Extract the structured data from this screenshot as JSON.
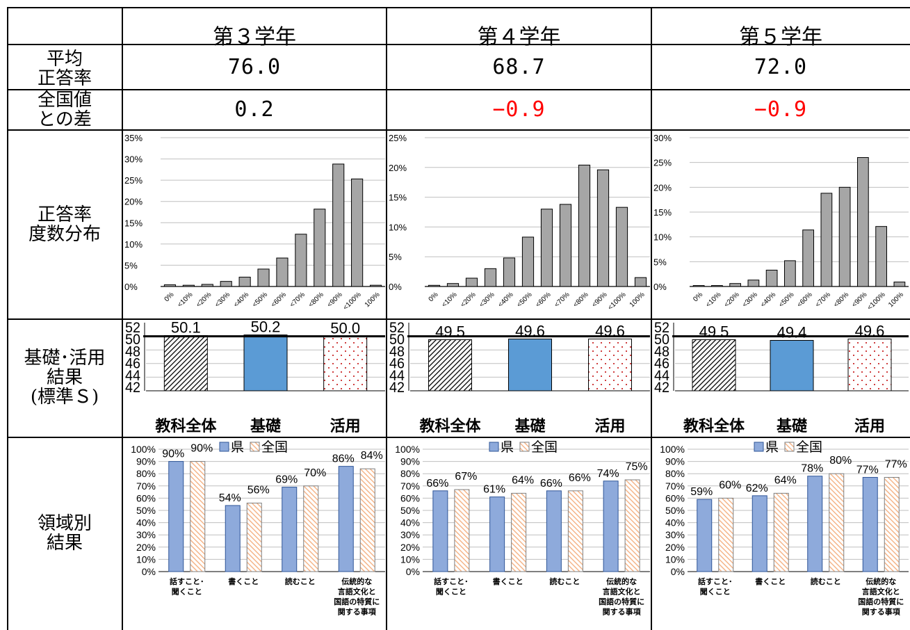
{
  "header": {
    "columns": [
      "第３学年",
      "第４学年",
      "第５学年"
    ]
  },
  "rows": {
    "avg_label": "平均\n正答率",
    "diff_label": "全国値\nとの差",
    "dist_label": "正答率\n度数分布",
    "std_label": "基礎･活用\n結果\n(標準Ｓ)",
    "area_label": "領域別\n結果"
  },
  "grades": [
    {
      "avg": "76.0",
      "diff": "0.2",
      "diff_negative": false
    },
    {
      "avg": "68.7",
      "diff": "−0.9",
      "diff_negative": true
    },
    {
      "avg": "72.0",
      "diff": "−0.9",
      "diff_negative": true
    }
  ],
  "colors": {
    "gray_bar": "#a6a6a6",
    "blue_bar": "#5b9bd5",
    "prefecture": "#8eaadb",
    "national": "#f4b183",
    "negative": "#ff0000"
  },
  "chart_data": [
    {
      "type": "bar",
      "grade": "第３学年",
      "chart": "distribution",
      "categories": [
        "0%",
        "<10%",
        "<20%",
        "<30%",
        "<40%",
        "<50%",
        "<60%",
        "<70%",
        "<80%",
        "<90%",
        "<100%",
        "100%"
      ],
      "values": [
        0.4,
        0.3,
        0.5,
        1.2,
        2.2,
        4.1,
        6.7,
        12.3,
        18.2,
        28.8,
        25.3,
        0.3
      ],
      "ylim": [
        0,
        35
      ],
      "yticks": [
        0,
        5,
        10,
        15,
        20,
        25,
        30,
        35
      ],
      "ytick_labels": [
        "0%",
        "5%",
        "10%",
        "15%",
        "20%",
        "25%",
        "30%",
        "35%"
      ]
    },
    {
      "type": "bar",
      "grade": "第４学年",
      "chart": "distribution",
      "categories": [
        "0%",
        "<10%",
        "<20%",
        "<30%",
        "<40%",
        "<50%",
        "<60%",
        "<70%",
        "<80%",
        "<90%",
        "<100%",
        "100%"
      ],
      "values": [
        0.2,
        0.5,
        1.4,
        3.0,
        4.8,
        8.3,
        13.0,
        13.8,
        20.4,
        19.6,
        13.3,
        1.5
      ],
      "ylim": [
        0,
        25
      ],
      "yticks": [
        0,
        5,
        10,
        15,
        20,
        25
      ],
      "ytick_labels": [
        "0%",
        "5%",
        "10%",
        "15%",
        "20%",
        "25%"
      ]
    },
    {
      "type": "bar",
      "grade": "第５学年",
      "chart": "distribution",
      "categories": [
        "0%",
        "<10%",
        "<20%",
        "<30%",
        "<40%",
        "<50%",
        "<60%",
        "<70%",
        "<80%",
        "<90%",
        "<100%",
        "100%"
      ],
      "values": [
        0.2,
        0.2,
        0.6,
        1.3,
        3.3,
        5.2,
        11.4,
        18.8,
        20.0,
        26.0,
        12.1,
        0.9
      ],
      "ylim": [
        0,
        30
      ],
      "yticks": [
        0,
        5,
        10,
        15,
        20,
        25,
        30
      ],
      "ytick_labels": [
        "0%",
        "5%",
        "10%",
        "15%",
        "20%",
        "25%",
        "30%"
      ]
    },
    {
      "type": "bar",
      "grade": "第３学年",
      "chart": "standard_score",
      "categories": [
        "教科全体",
        "基礎",
        "活用"
      ],
      "values": [
        50.1,
        50.2,
        50.0
      ],
      "labels": [
        "50.1",
        "50.2",
        "50.0"
      ],
      "reference": 50,
      "ylim": [
        42,
        52
      ],
      "ytick_labels": [
        "52",
        "50",
        "48",
        "46",
        "44",
        "42"
      ]
    },
    {
      "type": "bar",
      "grade": "第４学年",
      "chart": "standard_score",
      "categories": [
        "教科全体",
        "基礎",
        "活用"
      ],
      "values": [
        49.5,
        49.6,
        49.6
      ],
      "labels": [
        "49.5",
        "49.6",
        "49.6"
      ],
      "reference": 50,
      "ylim": [
        42,
        52
      ],
      "ytick_labels": [
        "52",
        "50",
        "48",
        "46",
        "44",
        "42"
      ]
    },
    {
      "type": "bar",
      "grade": "第５学年",
      "chart": "standard_score",
      "categories": [
        "教科全体",
        "基礎",
        "活用"
      ],
      "values": [
        49.5,
        49.4,
        49.6
      ],
      "labels": [
        "49.5",
        "49.4",
        "49.6"
      ],
      "reference": 50,
      "ylim": [
        42,
        52
      ],
      "ytick_labels": [
        "52",
        "50",
        "48",
        "46",
        "44",
        "42"
      ]
    },
    {
      "type": "bar",
      "grade": "第３学年",
      "chart": "domain",
      "categories": [
        [
          "話すこと･",
          "聞くこと"
        ],
        [
          "書くこと"
        ],
        [
          "読むこと"
        ],
        [
          "伝統的な",
          "言語文化と",
          "国語の特質に",
          "関する事項"
        ]
      ],
      "legend": [
        "県",
        "全国"
      ],
      "series": [
        {
          "name": "県",
          "values": [
            90,
            54,
            69,
            86
          ],
          "labels": [
            "90%",
            "54%",
            "69%",
            "86%"
          ]
        },
        {
          "name": "全国",
          "values": [
            90,
            56,
            70,
            84
          ],
          "labels": [
            "90%",
            "56%",
            "70%",
            "84%"
          ]
        }
      ],
      "ylim": [
        0,
        100
      ],
      "ytick_labels": [
        "0%",
        "10%",
        "20%",
        "30%",
        "40%",
        "50%",
        "60%",
        "70%",
        "80%",
        "90%",
        "100%"
      ]
    },
    {
      "type": "bar",
      "grade": "第４学年",
      "chart": "domain",
      "categories": [
        [
          "話すこと･",
          "聞くこと"
        ],
        [
          "書くこと"
        ],
        [
          "読むこと"
        ],
        [
          "伝統的な",
          "言語文化と",
          "国語の特質に",
          "関する事項"
        ]
      ],
      "legend": [
        "県",
        "全国"
      ],
      "series": [
        {
          "name": "県",
          "values": [
            66,
            61,
            66,
            74
          ],
          "labels": [
            "66%",
            "61%",
            "66%",
            "74%"
          ]
        },
        {
          "name": "全国",
          "values": [
            67,
            64,
            66,
            75
          ],
          "labels": [
            "67%",
            "64%",
            "66%",
            "75%"
          ]
        }
      ],
      "ylim": [
        0,
        100
      ],
      "ytick_labels": [
        "0%",
        "10%",
        "20%",
        "30%",
        "40%",
        "50%",
        "60%",
        "70%",
        "80%",
        "90%",
        "100%"
      ]
    },
    {
      "type": "bar",
      "grade": "第５学年",
      "chart": "domain",
      "categories": [
        [
          "話すこと･",
          "聞くこと"
        ],
        [
          "書くこと"
        ],
        [
          "読むこと"
        ],
        [
          "伝統的な",
          "言語文化と",
          "国語の特質に",
          "関する事項"
        ]
      ],
      "legend": [
        "県",
        "全国"
      ],
      "series": [
        {
          "name": "県",
          "values": [
            59,
            62,
            78,
            77
          ],
          "labels": [
            "59%",
            "62%",
            "78%",
            "77%"
          ]
        },
        {
          "name": "全国",
          "values": [
            60,
            64,
            80,
            77
          ],
          "labels": [
            "60%",
            "64%",
            "80%",
            "77%"
          ]
        }
      ],
      "ylim": [
        0,
        100
      ],
      "ytick_labels": [
        "0%",
        "10%",
        "20%",
        "30%",
        "40%",
        "50%",
        "60%",
        "70%",
        "80%",
        "90%",
        "100%"
      ]
    }
  ]
}
